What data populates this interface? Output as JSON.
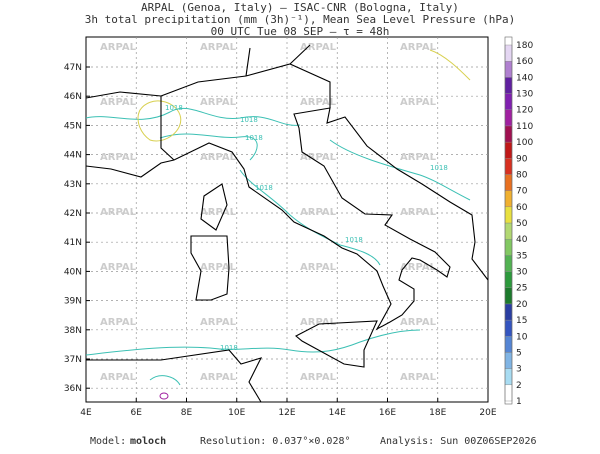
{
  "header": {
    "line1": "ARPAL (Genoa, Italy)  –  ISAC-CNR (Bologna, Italy)",
    "line2": "3h total precipitation (mm (3h)⁻¹), Mean Sea Level Pressure (hPa)",
    "line3": "00 UTC Tue 08 SEP  –  τ = 48h"
  },
  "map": {
    "lon_labels": [
      "4E",
      "6E",
      "8E",
      "10E",
      "12E",
      "14E",
      "16E",
      "18E",
      "20E"
    ],
    "lat_labels": [
      "47N",
      "46N",
      "45N",
      "44N",
      "43N",
      "42N",
      "41N",
      "40N",
      "39N",
      "38N",
      "37N",
      "36N"
    ],
    "watermark": "ARPAL",
    "isobar_label": "1018"
  },
  "colorbar": {
    "labels": [
      1,
      2,
      3,
      5,
      10,
      15,
      20,
      25,
      30,
      35,
      40,
      50,
      60,
      70,
      80,
      90,
      100,
      110,
      120,
      130,
      140,
      160,
      180
    ],
    "colors": [
      "#ffffff",
      "#a8dcf2",
      "#80b4e4",
      "#5585d4",
      "#3455c0",
      "#2a3ea2",
      "#1c7a2c",
      "#2c9a3c",
      "#52b252",
      "#82c862",
      "#b2d872",
      "#e8e040",
      "#f0b030",
      "#e87020",
      "#d83020",
      "#c01818",
      "#a01050",
      "#a020a0",
      "#8020b0",
      "#6020a0",
      "#b080d0",
      "#e4d6f2"
    ]
  },
  "footer": {
    "model_label": "Model:",
    "model": "moloch",
    "resolution": "Resolution: 0.037°×0.028°",
    "analysis": "Analysis: Sun 00Z06SEP2026"
  }
}
